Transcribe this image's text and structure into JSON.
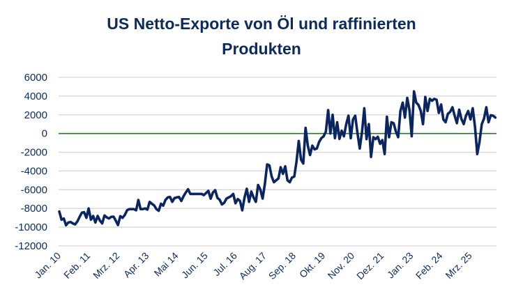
{
  "chart_data": {
    "type": "line",
    "title_lines": [
      "US Netto-Exporte von Öl und raffinierten",
      "Produkten"
    ],
    "xlabel": "",
    "ylabel": "",
    "ylim": [
      -12000,
      6000
    ],
    "yticks": [
      6000,
      4000,
      2000,
      0,
      -2000,
      -4000,
      -6000,
      -8000,
      -10000,
      -12000
    ],
    "x_start": "2010-01",
    "x_frequency": "monthly",
    "xtick_labels": [
      "Jan. 10",
      "Feb. 11",
      "Mrz. 12",
      "Apr. 13",
      "Mai 14",
      "Jun. 15",
      "Jul. 16",
      "Aug. 17",
      "Sep. 18",
      "Okt. 19",
      "Nov. 20",
      "Dez. 21",
      "Jan. 23",
      "Feb. 24",
      "Mrz. 25"
    ],
    "xtick_interval_months": 13,
    "grid": true,
    "zero_line_color": "#2e7030",
    "line_color": "#0b2560",
    "series": [
      {
        "values": [
          -8325,
          -9200,
          -9075,
          -9800,
          -9500,
          -9450,
          -9600,
          -9700,
          -9400,
          -8900,
          -8450,
          -8400,
          -9000,
          -8000,
          -9200,
          -8800,
          -9500,
          -8800,
          -9300,
          -9600,
          -8750,
          -8950,
          -9075,
          -8900,
          -8875,
          -9300,
          -9775,
          -8825,
          -9000,
          -8700,
          -8200,
          -8075,
          -8075,
          -8075,
          -8200,
          -7100,
          -8075,
          -8075,
          -8000,
          -8125,
          -7300,
          -7500,
          -7675,
          -8075,
          -8250,
          -7500,
          -7700,
          -7100,
          -6825,
          -6775,
          -7300,
          -6900,
          -6825,
          -6775,
          -7200,
          -6700,
          -6300,
          -5950,
          -6450,
          -6450,
          -6450,
          -6450,
          -6450,
          -6450,
          -6575,
          -6350,
          -6125,
          -6950,
          -6300,
          -6050,
          -6875,
          -7075,
          -7575,
          -7400,
          -6950,
          -6825,
          -6700,
          -6450,
          -7450,
          -7000,
          -7200,
          -8200,
          -6825,
          -5900,
          -7300,
          -6200,
          -6825,
          -7300,
          -5500,
          -6000,
          -6950,
          -5400,
          -3300,
          -3400,
          -4600,
          -5200,
          -5000,
          -4800,
          -3600,
          -4300,
          -3500,
          -5000,
          -5200,
          -4700,
          -4600,
          -3000,
          -800,
          -2800,
          -3200,
          600,
          -1300,
          -2300,
          -1300,
          -1700,
          -1600,
          -900,
          -500,
          -300,
          200,
          2500,
          0,
          2000,
          -500,
          1200,
          -575,
          300,
          -300,
          1000,
          1900,
          -500,
          1500,
          1900,
          0,
          -1600,
          200,
          2700,
          -600,
          1000,
          -2500,
          -400,
          -600,
          -350,
          -1100,
          -700,
          -2200,
          1800,
          -400,
          1200,
          1100,
          200,
          -400,
          2400,
          3300,
          1700,
          3800,
          2500,
          -300,
          4500,
          3300,
          3050,
          2400,
          1000,
          3900,
          2400,
          3700,
          3500,
          3700,
          3600,
          2200,
          3100,
          1500,
          1200,
          2100,
          2300,
          2800,
          1900,
          1100,
          2550,
          1550,
          1000,
          1900,
          2400,
          1500,
          2700,
          700,
          -2200,
          -900,
          1000,
          1600,
          2800,
          1200,
          1950,
          1900,
          1700
        ]
      }
    ]
  }
}
